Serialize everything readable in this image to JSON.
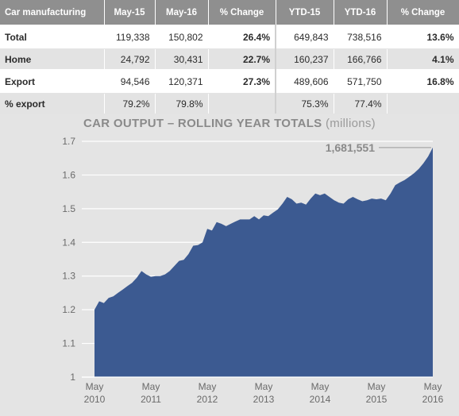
{
  "table": {
    "headers": [
      "Car manufacturing",
      "May-15",
      "May-16",
      "% Change",
      "YTD-15",
      "YTD-16",
      "% Change"
    ],
    "rows": [
      {
        "label": "Total",
        "cells": [
          "119,338",
          "150,802",
          "26.4%",
          "649,843",
          "738,516",
          "13.6%"
        ]
      },
      {
        "label": "Home",
        "cells": [
          "24,792",
          "30,431",
          "22.7%",
          "160,237",
          "166,766",
          "4.1%"
        ]
      },
      {
        "label": "Export",
        "cells": [
          "94,546",
          "120,371",
          "27.3%",
          "489,606",
          "571,750",
          "16.8%"
        ]
      },
      {
        "label": "% export",
        "cells": [
          "79.2%",
          "79.8%",
          "",
          "75.3%",
          "77.4%",
          ""
        ]
      }
    ]
  },
  "chart_data": {
    "type": "area",
    "title": "CAR OUTPUT – ROLLING YEAR TOTALS",
    "title_unit": "(millions)",
    "xlabel": "",
    "ylabel": "",
    "ylim": [
      1,
      1.7
    ],
    "yticks": [
      "1",
      "1.1",
      "1.2",
      "1.3",
      "1.4",
      "1.5",
      "1.6",
      "1.7"
    ],
    "xticks": [
      {
        "month": "May",
        "year": "2010"
      },
      {
        "month": "May",
        "year": "2011"
      },
      {
        "month": "May",
        "year": "2012"
      },
      {
        "month": "May",
        "year": "2013"
      },
      {
        "month": "May",
        "year": "2014"
      },
      {
        "month": "May",
        "year": "2015"
      },
      {
        "month": "May",
        "year": "2016"
      }
    ],
    "grid": true,
    "fill_color": "#3c5a91",
    "annotation": {
      "text": "1,681,551",
      "at_point": "last"
    },
    "series": [
      {
        "x": [
          "2010-05",
          "2010-06",
          "2010-07",
          "2010-08",
          "2010-09",
          "2010-10",
          "2010-11",
          "2010-12",
          "2011-01",
          "2011-02",
          "2011-03",
          "2011-04",
          "2011-05",
          "2011-06",
          "2011-07",
          "2011-08",
          "2011-09",
          "2011-10",
          "2011-11",
          "2011-12",
          "2012-01",
          "2012-02",
          "2012-03",
          "2012-04",
          "2012-05",
          "2012-06",
          "2012-07",
          "2012-08",
          "2012-09",
          "2012-10",
          "2012-11",
          "2012-12",
          "2013-01",
          "2013-02",
          "2013-03",
          "2013-04",
          "2013-05",
          "2013-06",
          "2013-07",
          "2013-08",
          "2013-09",
          "2013-10",
          "2013-11",
          "2013-12",
          "2014-01",
          "2014-02",
          "2014-03",
          "2014-04",
          "2014-05",
          "2014-06",
          "2014-07",
          "2014-08",
          "2014-09",
          "2014-10",
          "2014-11",
          "2014-12",
          "2015-01",
          "2015-02",
          "2015-03",
          "2015-04",
          "2015-05",
          "2015-06",
          "2015-07",
          "2015-08",
          "2015-09",
          "2015-10",
          "2015-11",
          "2015-12",
          "2016-01",
          "2016-02",
          "2016-03",
          "2016-04",
          "2016-05"
        ],
        "values": [
          1.2,
          1.225,
          1.22,
          1.235,
          1.24,
          1.25,
          1.26,
          1.27,
          1.28,
          1.295,
          1.315,
          1.305,
          1.298,
          1.3,
          1.3,
          1.305,
          1.315,
          1.33,
          1.345,
          1.348,
          1.365,
          1.39,
          1.392,
          1.4,
          1.44,
          1.435,
          1.46,
          1.455,
          1.448,
          1.455,
          1.462,
          1.468,
          1.468,
          1.468,
          1.478,
          1.468,
          1.48,
          1.478,
          1.488,
          1.498,
          1.515,
          1.535,
          1.528,
          1.515,
          1.518,
          1.512,
          1.53,
          1.545,
          1.54,
          1.545,
          1.535,
          1.525,
          1.518,
          1.515,
          1.528,
          1.535,
          1.528,
          1.522,
          1.525,
          1.53,
          1.528,
          1.53,
          1.525,
          1.545,
          1.57,
          1.578,
          1.585,
          1.595,
          1.605,
          1.618,
          1.635,
          1.655,
          1.681551
        ]
      }
    ]
  }
}
